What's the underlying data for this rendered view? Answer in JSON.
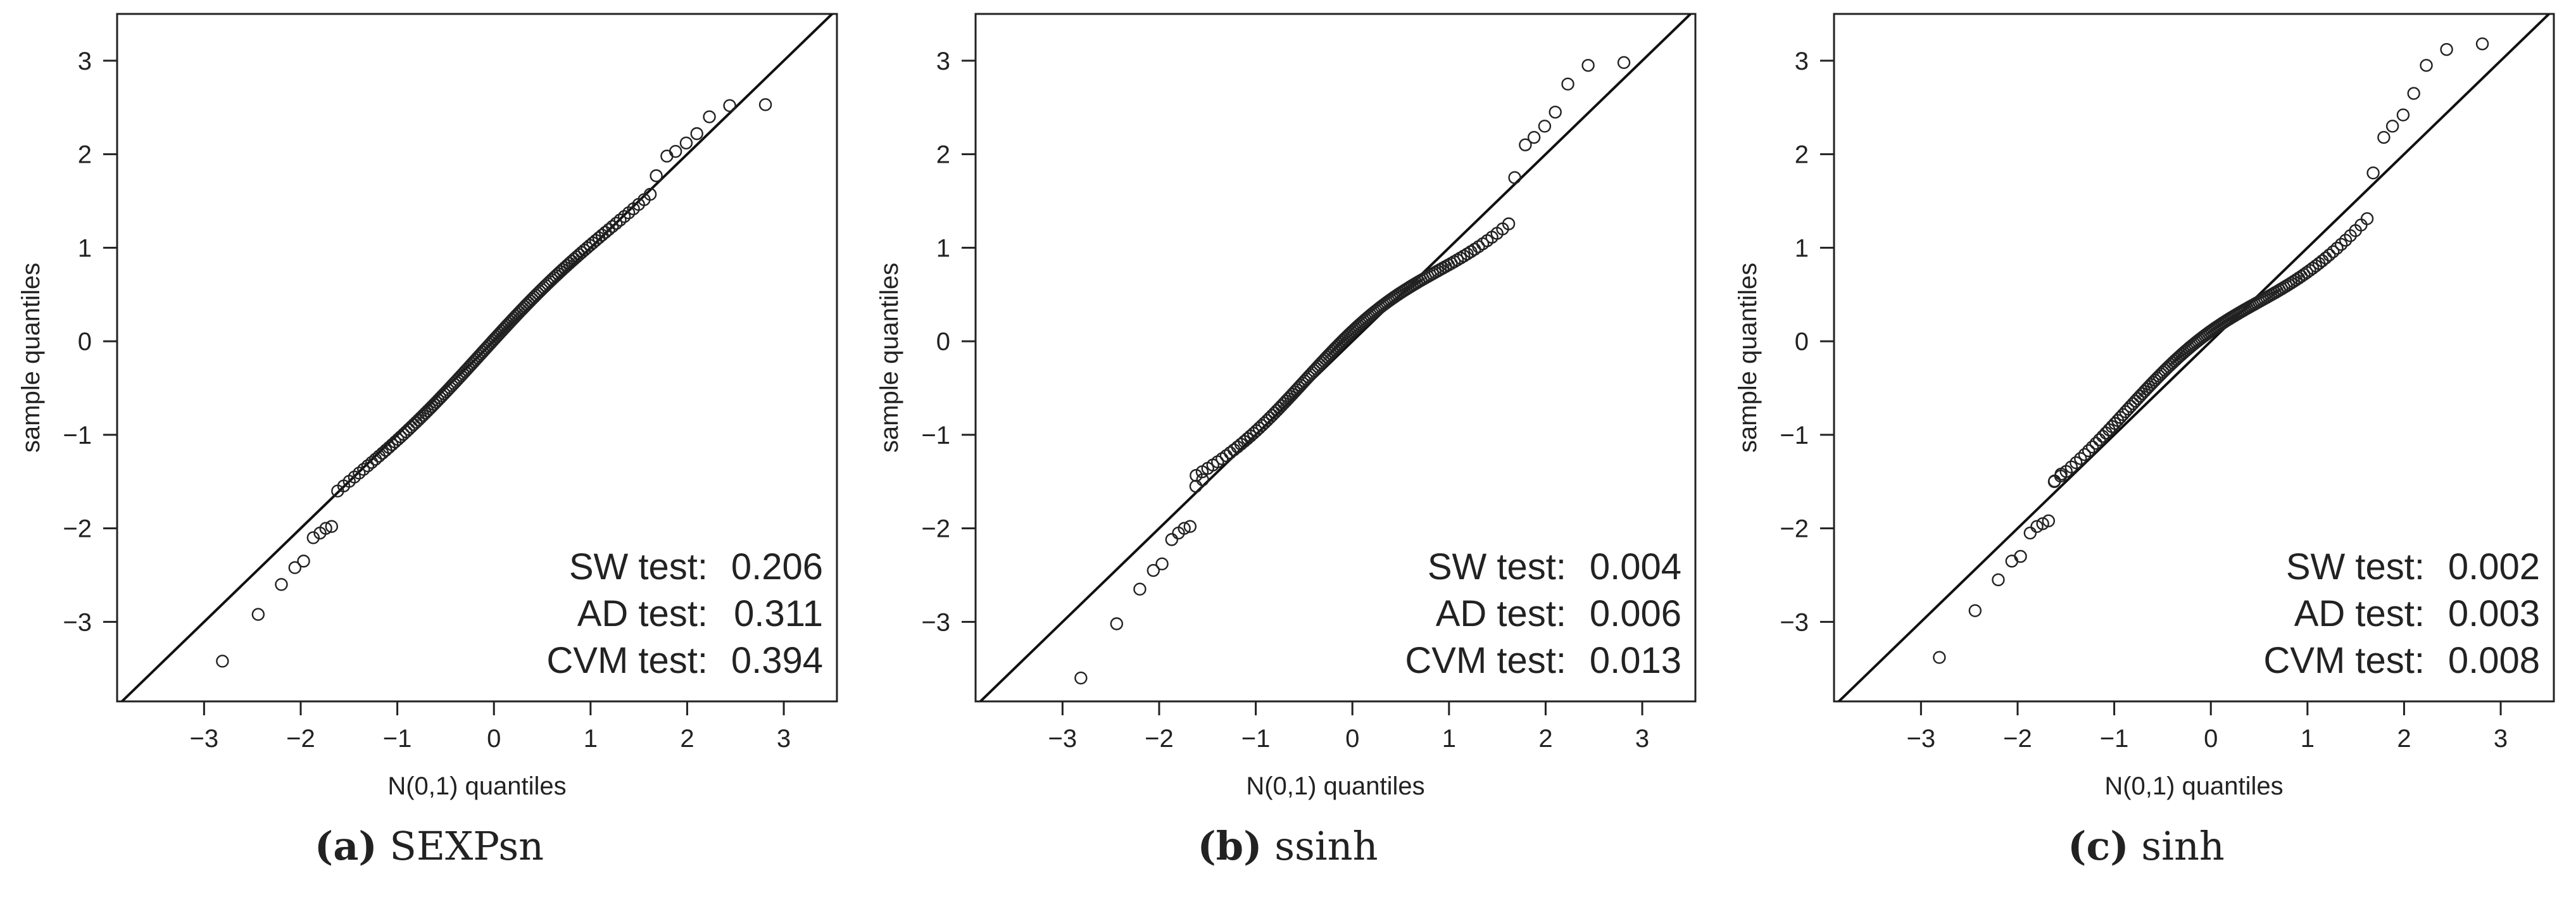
{
  "chart_data": [
    {
      "type": "scatter",
      "title": "",
      "xlabel": "N(0,1) quantiles",
      "ylabel": "sample quantiles",
      "xlim": [
        -3.9,
        3.55
      ],
      "ylim": [
        -3.85,
        3.5
      ],
      "xticks": [
        -3,
        -2,
        -1,
        0,
        1,
        2,
        3
      ],
      "yticks": [
        -3,
        -2,
        -1,
        0,
        1,
        2,
        3
      ],
      "reference_line": {
        "slope": 1,
        "intercept": 0
      },
      "tests": [
        {
          "label": "SW test:",
          "value": "0.206"
        },
        {
          "label": "AD test:",
          "value": "0.311"
        },
        {
          "label": "CVM test:",
          "value": "0.394"
        }
      ],
      "caption": {
        "label": "(a)",
        "name": "SEXPsn"
      },
      "tail_points": [
        [
          -2.81,
          -3.42
        ],
        [
          -2.44,
          -2.92
        ],
        [
          -2.2,
          -2.6
        ],
        [
          -2.06,
          -2.42
        ],
        [
          -1.97,
          -2.35
        ],
        [
          -1.87,
          -2.1
        ],
        [
          -1.8,
          -2.05
        ],
        [
          -1.74,
          -2.0
        ],
        [
          -1.68,
          -1.98
        ],
        [
          1.68,
          1.77
        ],
        [
          1.79,
          1.98
        ],
        [
          1.88,
          2.03
        ],
        [
          1.99,
          2.12
        ],
        [
          2.1,
          2.22
        ],
        [
          2.23,
          2.4
        ],
        [
          2.44,
          2.52
        ],
        [
          2.81,
          2.53
        ]
      ],
      "body": {
        "count": 130,
        "slope": 1.0,
        "wiggle": 0.06,
        "phase": 0.3
      }
    },
    {
      "type": "scatter",
      "title": "",
      "xlabel": "N(0,1) quantiles",
      "ylabel": "sample quantiles",
      "xlim": [
        -3.9,
        3.55
      ],
      "ylim": [
        -3.85,
        3.5
      ],
      "xticks": [
        -3,
        -2,
        -1,
        0,
        1,
        2,
        3
      ],
      "yticks": [
        -3,
        -2,
        -1,
        0,
        1,
        2,
        3
      ],
      "reference_line": {
        "slope": 1,
        "intercept": 0
      },
      "tests": [
        {
          "label": "SW test:",
          "value": "0.004"
        },
        {
          "label": "AD test:",
          "value": "0.006"
        },
        {
          "label": "CVM test:",
          "value": "0.013"
        }
      ],
      "caption": {
        "label": "(b)",
        "name": "ssinh"
      },
      "tail_points": [
        [
          -2.81,
          -3.6
        ],
        [
          -2.44,
          -3.02
        ],
        [
          -2.2,
          -2.65
        ],
        [
          -2.06,
          -2.45
        ],
        [
          -1.97,
          -2.38
        ],
        [
          -1.87,
          -2.12
        ],
        [
          -1.8,
          -2.05
        ],
        [
          -1.74,
          -2.0
        ],
        [
          -1.68,
          -1.98
        ],
        [
          -1.62,
          -1.55
        ],
        [
          -1.55,
          -1.48
        ],
        [
          1.68,
          1.75
        ],
        [
          1.79,
          2.1
        ],
        [
          1.88,
          2.18
        ],
        [
          1.99,
          2.3
        ],
        [
          2.1,
          2.45
        ],
        [
          2.23,
          2.75
        ],
        [
          2.44,
          2.95
        ],
        [
          2.81,
          2.98
        ]
      ],
      "body": {
        "count": 130,
        "slope": 0.85,
        "wiggle": 0.12,
        "phase": 1.1
      }
    },
    {
      "type": "scatter",
      "title": "",
      "xlabel": "N(0,1) quantiles",
      "ylabel": "sample quantiles",
      "xlim": [
        -3.9,
        3.55
      ],
      "ylim": [
        -3.85,
        3.5
      ],
      "xticks": [
        -3,
        -2,
        -1,
        0,
        1,
        2,
        3
      ],
      "yticks": [
        -3,
        -2,
        -1,
        0,
        1,
        2,
        3
      ],
      "reference_line": {
        "slope": 1,
        "intercept": 0
      },
      "tests": [
        {
          "label": "SW test:",
          "value": "0.002"
        },
        {
          "label": "AD test:",
          "value": "0.003"
        },
        {
          "label": "CVM test:",
          "value": "0.008"
        }
      ],
      "caption": {
        "label": "(c)",
        "name": "sinh"
      },
      "tail_points": [
        [
          -2.81,
          -3.38
        ],
        [
          -2.44,
          -2.88
        ],
        [
          -2.2,
          -2.55
        ],
        [
          -2.06,
          -2.35
        ],
        [
          -1.97,
          -2.3
        ],
        [
          -1.87,
          -2.05
        ],
        [
          -1.8,
          -1.98
        ],
        [
          -1.74,
          -1.95
        ],
        [
          -1.68,
          -1.92
        ],
        [
          -1.62,
          -1.5
        ],
        [
          -1.55,
          -1.42
        ],
        [
          1.68,
          1.8
        ],
        [
          1.79,
          2.18
        ],
        [
          1.88,
          2.3
        ],
        [
          1.99,
          2.42
        ],
        [
          2.1,
          2.65
        ],
        [
          2.23,
          2.95
        ],
        [
          2.44,
          3.12
        ],
        [
          2.81,
          3.18
        ]
      ],
      "body": {
        "count": 130,
        "slope": 0.85,
        "wiggle": 0.12,
        "phase": 2.0
      }
    }
  ]
}
